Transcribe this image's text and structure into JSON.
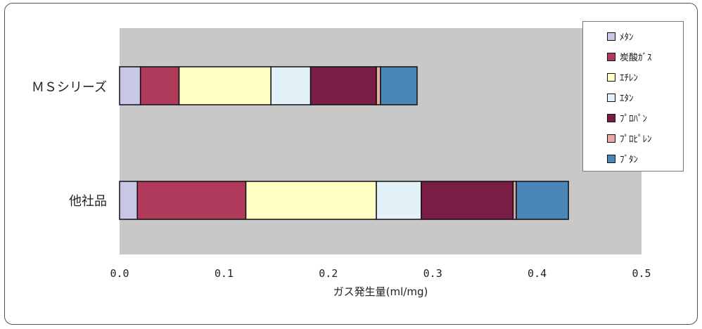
{
  "chart_data": {
    "type": "bar",
    "orientation": "horizontal",
    "stacked": true,
    "categories": [
      "ＭＳシリーズ",
      "他社品"
    ],
    "series": [
      {
        "name": "ﾒﾀﾝ",
        "color": "#c8c8e6",
        "values": [
          0.02,
          0.017
        ]
      },
      {
        "name": "炭酸ｶﾞｽ",
        "color": "#b03a5c",
        "values": [
          0.037,
          0.104
        ]
      },
      {
        "name": "ｴﾁﾚﾝ",
        "color": "#ffffc6",
        "values": [
          0.088,
          0.125
        ]
      },
      {
        "name": "ｴﾀﾝ",
        "color": "#e2f2f8",
        "values": [
          0.038,
          0.043
        ]
      },
      {
        "name": "ﾌﾟﾛﾊﾟﾝ",
        "color": "#7a1d45",
        "values": [
          0.063,
          0.088
        ]
      },
      {
        "name": "ﾌﾟﾛﾋﾟﾚﾝ",
        "color": "#e8a8a8",
        "values": [
          0.004,
          0.003
        ]
      },
      {
        "name": "ﾌﾞﾀﾝ",
        "color": "#4a86b8",
        "values": [
          0.035,
          0.05
        ]
      }
    ],
    "xlabel": "ガス発生量(ml/mg)",
    "xlim": [
      0,
      0.5
    ],
    "xticks": [
      "0.0",
      "0.1",
      "0.2",
      "0.3",
      "0.4",
      "0.5"
    ],
    "legend": "right",
    "grid": false,
    "plot_background": "#c8c8c8"
  }
}
